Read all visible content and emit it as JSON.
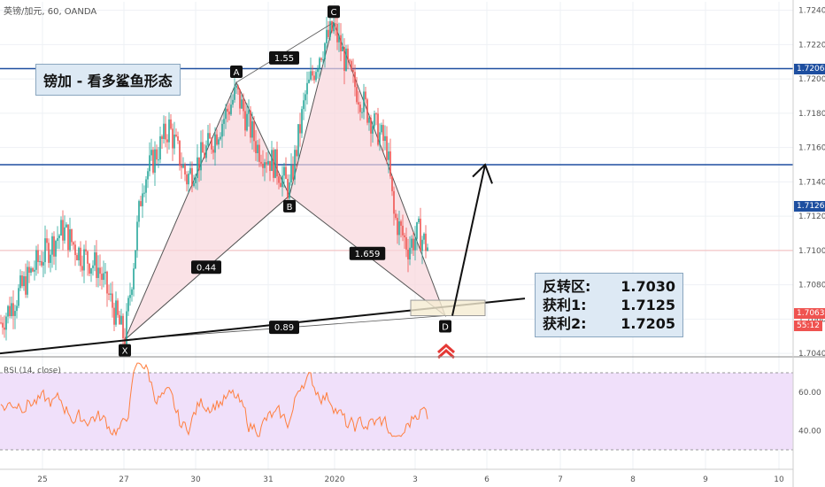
{
  "symbol_label": "英镑/加元, 60, OANDA",
  "title": "镑加 - 看多鲨鱼形态",
  "info": [
    {
      "label": "反转区:",
      "value": "1.7030"
    },
    {
      "label": "获利1:",
      "value": "1.7125"
    },
    {
      "label": "获利2:",
      "value": "1.7205"
    }
  ],
  "price_tags": [
    {
      "text": "1.72064",
      "price": 1.7206,
      "color": "#1e4fa0"
    },
    {
      "text": "1.71261",
      "price": 1.7126,
      "color": "#1e4fa0"
    },
    {
      "text": "1.70635",
      "price": 1.70635,
      "color": "#ef5350"
    },
    {
      "text": "55:12",
      "price": 1.7056,
      "color": "#ef5350"
    }
  ],
  "rsi_label": "RSI (14, close)",
  "colors": {
    "bull": "#26a69a",
    "bear": "#ef5350",
    "hline": "#1e4fa0",
    "pattern_fill": "#f8d6dc",
    "rsi_fill": "#f0e0fa",
    "rsi_line": "#ff7f3f"
  },
  "chart_data": {
    "type": "candlestick",
    "price_axis": {
      "ticks": [
        1.724,
        1.722,
        1.72,
        1.718,
        1.716,
        1.714,
        1.712,
        1.71,
        1.708,
        1.706,
        1.704
      ],
      "range": [
        1.7038,
        1.7245
      ]
    },
    "x_axis": {
      "labels": [
        "25",
        "27",
        "30",
        "31",
        "2020",
        "3",
        "6",
        "7",
        "8",
        "9",
        "10"
      ]
    },
    "horizontal_lines": [
      1.7206,
      1.715
    ],
    "pattern": {
      "points": [
        {
          "label": "X",
          "bar": 70,
          "price": 1.7048
        },
        {
          "label": "A",
          "bar": 133,
          "price": 1.7198
        },
        {
          "label": "B",
          "bar": 163,
          "price": 1.7132
        },
        {
          "label": "C",
          "bar": 188,
          "price": 1.7233
        },
        {
          "label": "D",
          "bar": 251,
          "price": 1.7062
        }
      ],
      "ratios": [
        {
          "text": "1.55",
          "bar": 160,
          "price": 1.7212
        },
        {
          "text": "0.44",
          "bar": 116,
          "price": 1.709
        },
        {
          "text": "1.659",
          "bar": 207,
          "price": 1.7098
        },
        {
          "text": "0.89",
          "bar": 160,
          "price": 1.7055
        }
      ]
    },
    "rsi": {
      "ticks": [
        60,
        40
      ],
      "upper": 70,
      "lower": 30,
      "range": [
        36,
        76
      ]
    },
    "candle_count": 242
  }
}
